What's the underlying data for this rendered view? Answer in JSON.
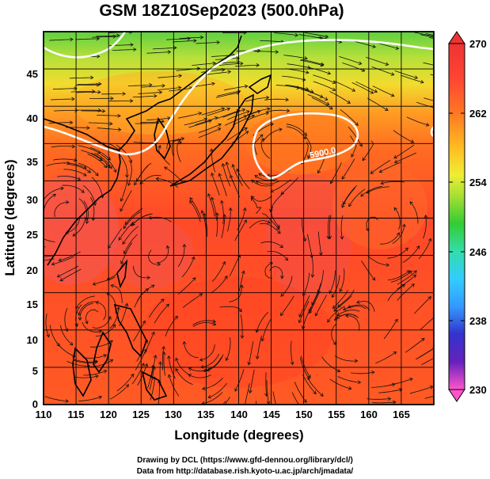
{
  "title": "GSM 18Z10Sep2023 (500.0hPa)",
  "xaxis": {
    "label": "Longitude (degrees)",
    "ticks": [
      "110",
      "115",
      "120",
      "125",
      "130",
      "135",
      "140",
      "145",
      "150",
      "155",
      "160",
      "165"
    ],
    "range": [
      110,
      170
    ]
  },
  "yaxis": {
    "label": "Latitude  (degrees)",
    "ticks": [
      "0",
      "5",
      "10",
      "15",
      "20",
      "25",
      "30",
      "35",
      "40",
      "45"
    ],
    "range": [
      0,
      50
    ]
  },
  "colorbar": {
    "labels": [
      "270",
      "262",
      "254",
      "246",
      "238",
      "230"
    ],
    "range": [
      230,
      270
    ],
    "colors": [
      "#ff55cc",
      "#cc33cc",
      "#3333cc",
      "#3399ff",
      "#33ccff",
      "#33ddaa",
      "#33cc33",
      "#99dd33",
      "#eeee33",
      "#ffbb22",
      "#ff7722",
      "#ff4433",
      "#ee3333"
    ]
  },
  "contour_label": "5900.0",
  "credits": {
    "line1": "Drawing by DCL (https://www.gfd-dennou.org/library/dcl/)",
    "line2": "Data from http://database.rish.kyoto-u.ac.jp/arch/jmadata/"
  },
  "colors": {
    "warm": "#ff3b22",
    "orange": "#ff7a1e",
    "yellow": "#f5e030",
    "green": "#6fd630",
    "contour": "#ffffff"
  }
}
